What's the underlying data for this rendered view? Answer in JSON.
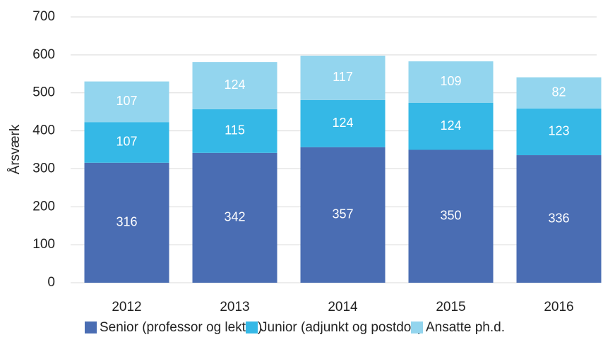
{
  "chart_data": {
    "type": "stacked_bar",
    "y_label": "Årsværk",
    "categories": [
      "2012",
      "2013",
      "2014",
      "2015",
      "2016"
    ],
    "series": [
      {
        "name": "Senior (professor og lektor)",
        "color": "#4a6db3",
        "values": [
          316,
          342,
          357,
          350,
          336
        ]
      },
      {
        "name": "Junior (adjunkt og postdoc)",
        "color": "#35b8e6",
        "values": [
          107,
          115,
          124,
          124,
          123
        ]
      },
      {
        "name": "Ansatte ph.d.",
        "color": "#93d5ee",
        "values": [
          107,
          124,
          117,
          109,
          82
        ]
      }
    ],
    "ylim": [
      0,
      700
    ],
    "yticks": [
      0,
      100,
      200,
      300,
      400,
      500,
      600,
      700
    ],
    "grid": true,
    "legend": "bottom"
  }
}
